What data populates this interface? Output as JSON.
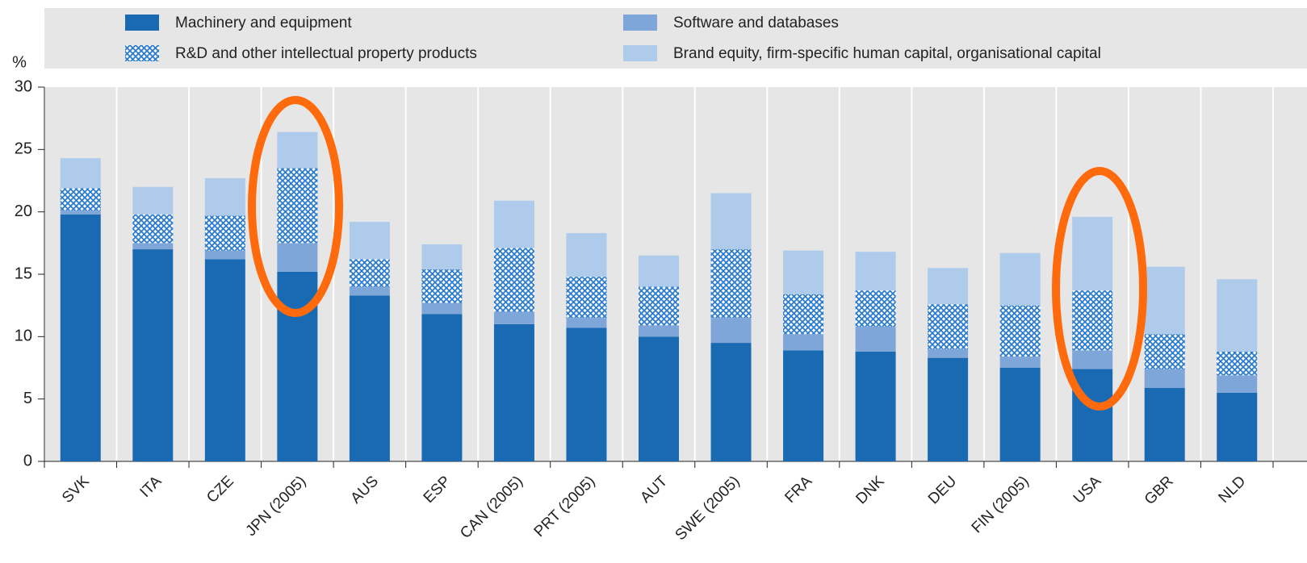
{
  "chart_data": {
    "type": "stacked_bar",
    "y_label": "%",
    "categories": [
      "SVK",
      "ITA",
      "CZE",
      "JPN (2005)",
      "AUS",
      "ESP",
      "CAN (2005)",
      "PRT (2005)",
      "AUT",
      "SWE (2005)",
      "FRA",
      "DNK",
      "DEU",
      "FIN (2005)",
      "USA",
      "GBR",
      "NLD"
    ],
    "series": [
      {
        "name": "Machinery and equipment",
        "color": "#1a6ab3",
        "values": [
          19.8,
          17.0,
          16.2,
          15.2,
          13.3,
          11.8,
          11.0,
          10.7,
          10.0,
          9.5,
          8.9,
          8.8,
          8.3,
          7.5,
          7.4,
          5.9,
          5.5
        ]
      },
      {
        "name": "Software and databases",
        "color": "#7fa6d9",
        "values": [
          0.3,
          0.5,
          0.7,
          2.3,
          0.7,
          0.9,
          1.0,
          0.8,
          0.9,
          2.0,
          1.3,
          2.0,
          0.7,
          0.9,
          1.5,
          1.5,
          1.4
        ]
      },
      {
        "name": "R&D and other intellectual property products",
        "color": "#2b7cd0",
        "hatch": true,
        "values": [
          1.8,
          2.3,
          2.8,
          6.0,
          2.2,
          2.7,
          5.1,
          3.3,
          3.1,
          5.5,
          3.2,
          2.9,
          3.6,
          4.1,
          4.8,
          2.8,
          1.9
        ]
      },
      {
        "name": "Brand equity, firm-specific human capital, organisational capital",
        "color": "#aecbeb",
        "values": [
          2.4,
          2.2,
          3.0,
          2.9,
          3.0,
          2.0,
          3.8,
          3.5,
          2.5,
          4.5,
          3.5,
          3.1,
          2.9,
          4.2,
          5.9,
          5.4,
          5.8
        ]
      }
    ],
    "ylim": [
      0,
      30
    ],
    "yticks": [
      0,
      5,
      10,
      15,
      20,
      25,
      30
    ]
  }
}
